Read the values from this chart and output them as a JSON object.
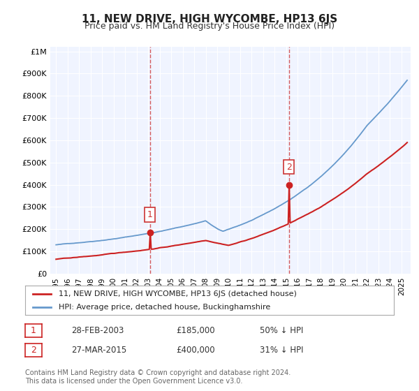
{
  "title": "11, NEW DRIVE, HIGH WYCOMBE, HP13 6JS",
  "subtitle": "Price paid vs. HM Land Registry's House Price Index (HPI)",
  "xlabel": "",
  "ylabel": "",
  "background_color": "#ffffff",
  "plot_background": "#f0f4ff",
  "sale1_date": "28-FEB-2003",
  "sale1_price": 185000,
  "sale1_label": "50% ↓ HPI",
  "sale2_date": "27-MAR-2015",
  "sale2_price": 400000,
  "sale2_label": "31% ↓ HPI",
  "sale1_x": 2003.15,
  "sale2_x": 2015.23,
  "legend_line1": "11, NEW DRIVE, HIGH WYCOMBE, HP13 6JS (detached house)",
  "legend_line2": "HPI: Average price, detached house, Buckinghamshire",
  "footer": "Contains HM Land Registry data © Crown copyright and database right 2024.\nThis data is licensed under the Open Government Licence v3.0.",
  "table_row1": [
    "1",
    "28-FEB-2003",
    "£185,000",
    "50% ↓ HPI"
  ],
  "table_row2": [
    "2",
    "27-MAR-2015",
    "£400,000",
    "31% ↓ HPI"
  ],
  "hpi_color": "#6699cc",
  "sale_color": "#cc2222",
  "vline_color": "#cc3333",
  "point_color": "#cc2222"
}
